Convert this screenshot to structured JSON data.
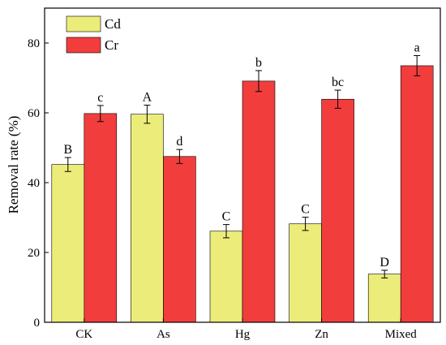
{
  "chart_data": {
    "type": "bar",
    "ylabel": "Removal rate (%)",
    "xlabel": "",
    "title": "",
    "categories": [
      "CK",
      "As",
      "Hg",
      "Zn",
      "Mixed"
    ],
    "ylim": [
      0,
      90
    ],
    "yticks": [
      0,
      20,
      40,
      60,
      80
    ],
    "legend_position": "top-left",
    "series": [
      {
        "name": "Cd",
        "color": "#ecec7a",
        "values": [
          45.2,
          59.6,
          26.1,
          28.2,
          13.8
        ],
        "errors": [
          2.0,
          2.6,
          1.9,
          1.9,
          1.1
        ],
        "letters": [
          "B",
          "A",
          "C",
          "C",
          "D"
        ]
      },
      {
        "name": "Cr",
        "color": "#f23d3d",
        "values": [
          59.8,
          47.5,
          69.1,
          63.9,
          73.5
        ],
        "errors": [
          2.3,
          2.0,
          3.0,
          2.6,
          2.9
        ],
        "letters": [
          "c",
          "d",
          "b",
          "bc",
          "a"
        ]
      }
    ]
  }
}
